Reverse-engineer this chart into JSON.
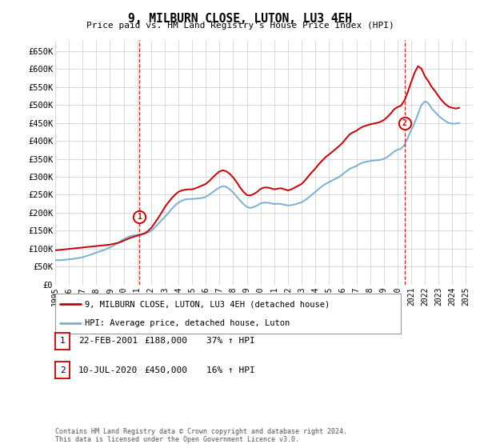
{
  "title": "9, MILBURN CLOSE, LUTON, LU3 4EH",
  "subtitle": "Price paid vs. HM Land Registry's House Price Index (HPI)",
  "xlim_start": 1995.0,
  "xlim_end": 2025.5,
  "ylim_min": 0,
  "ylim_max": 680000,
  "yticks": [
    0,
    50000,
    100000,
    150000,
    200000,
    250000,
    300000,
    350000,
    400000,
    450000,
    500000,
    550000,
    600000,
    650000
  ],
  "ytick_labels": [
    "£0",
    "£50K",
    "£100K",
    "£150K",
    "£200K",
    "£250K",
    "£300K",
    "£350K",
    "£400K",
    "£450K",
    "£500K",
    "£550K",
    "£600K",
    "£650K"
  ],
  "xticks": [
    1995,
    1996,
    1997,
    1998,
    1999,
    2000,
    2001,
    2002,
    2003,
    2004,
    2005,
    2006,
    2007,
    2008,
    2009,
    2010,
    2011,
    2012,
    2013,
    2014,
    2015,
    2016,
    2017,
    2018,
    2019,
    2020,
    2021,
    2022,
    2023,
    2024,
    2025
  ],
  "sale1_x": 2001.14,
  "sale1_y": 188000,
  "sale1_label": "1",
  "sale2_x": 2020.52,
  "sale2_y": 450000,
  "sale2_label": "2",
  "hpi_line_color": "#7bafd4",
  "price_line_color": "#cc0000",
  "sale_marker_color": "#cc0000",
  "vline_color": "#cc0000",
  "grid_color": "#cccccc",
  "background_color": "#ffffff",
  "legend_label1": "9, MILBURN CLOSE, LUTON, LU3 4EH (detached house)",
  "legend_label2": "HPI: Average price, detached house, Luton",
  "table_row1": [
    "1",
    "22-FEB-2001",
    "£188,000",
    "37% ↑ HPI"
  ],
  "table_row2": [
    "2",
    "10-JUL-2020",
    "£450,000",
    "16% ↑ HPI"
  ],
  "footer": "Contains HM Land Registry data © Crown copyright and database right 2024.\nThis data is licensed under the Open Government Licence v3.0.",
  "hpi_data_x": [
    1995.0,
    1995.25,
    1995.5,
    1995.75,
    1996.0,
    1996.25,
    1996.5,
    1996.75,
    1997.0,
    1997.25,
    1997.5,
    1997.75,
    1998.0,
    1998.25,
    1998.5,
    1998.75,
    1999.0,
    1999.25,
    1999.5,
    1999.75,
    2000.0,
    2000.25,
    2000.5,
    2000.75,
    2001.0,
    2001.25,
    2001.5,
    2001.75,
    2002.0,
    2002.25,
    2002.5,
    2002.75,
    2003.0,
    2003.25,
    2003.5,
    2003.75,
    2004.0,
    2004.25,
    2004.5,
    2004.75,
    2005.0,
    2005.25,
    2005.5,
    2005.75,
    2006.0,
    2006.25,
    2006.5,
    2006.75,
    2007.0,
    2007.25,
    2007.5,
    2007.75,
    2008.0,
    2008.25,
    2008.5,
    2008.75,
    2009.0,
    2009.25,
    2009.5,
    2009.75,
    2010.0,
    2010.25,
    2010.5,
    2010.75,
    2011.0,
    2011.25,
    2011.5,
    2011.75,
    2012.0,
    2012.25,
    2012.5,
    2012.75,
    2013.0,
    2013.25,
    2013.5,
    2013.75,
    2014.0,
    2014.25,
    2014.5,
    2014.75,
    2015.0,
    2015.25,
    2015.5,
    2015.75,
    2016.0,
    2016.25,
    2016.5,
    2016.75,
    2017.0,
    2017.25,
    2017.5,
    2017.75,
    2018.0,
    2018.25,
    2018.5,
    2018.75,
    2019.0,
    2019.25,
    2019.5,
    2019.75,
    2020.0,
    2020.25,
    2020.5,
    2020.75,
    2021.0,
    2021.25,
    2021.5,
    2021.75,
    2022.0,
    2022.25,
    2022.5,
    2022.75,
    2023.0,
    2023.25,
    2023.5,
    2023.75,
    2024.0,
    2024.25,
    2024.5
  ],
  "hpi_data_y": [
    68000,
    67500,
    68000,
    69000,
    70000,
    71000,
    72500,
    74000,
    76000,
    79000,
    82000,
    85000,
    89000,
    92000,
    95000,
    99000,
    103000,
    108000,
    114000,
    120000,
    126000,
    131000,
    135000,
    137000,
    138000,
    139000,
    141000,
    144000,
    149000,
    158000,
    168000,
    178000,
    188000,
    198000,
    210000,
    220000,
    228000,
    233000,
    237000,
    238000,
    238000,
    239000,
    240000,
    241000,
    244000,
    250000,
    257000,
    264000,
    270000,
    274000,
    272000,
    265000,
    256000,
    245000,
    234000,
    224000,
    216000,
    213000,
    216000,
    220000,
    226000,
    228000,
    228000,
    226000,
    224000,
    225000,
    224000,
    222000,
    220000,
    221000,
    223000,
    226000,
    229000,
    235000,
    242000,
    250000,
    258000,
    266000,
    274000,
    280000,
    285000,
    290000,
    295000,
    300000,
    307000,
    315000,
    322000,
    326000,
    330000,
    336000,
    340000,
    342000,
    344000,
    345000,
    346000,
    347000,
    350000,
    355000,
    362000,
    370000,
    375000,
    378000,
    388000,
    408000,
    430000,
    450000,
    475000,
    500000,
    510000,
    505000,
    490000,
    480000,
    470000,
    462000,
    455000,
    450000,
    448000,
    448000,
    450000
  ],
  "price_data_x": [
    1995.0,
    1995.25,
    1995.5,
    1995.75,
    1996.0,
    1996.25,
    1996.5,
    1996.75,
    1997.0,
    1997.25,
    1997.5,
    1997.75,
    1998.0,
    1998.25,
    1998.5,
    1998.75,
    1999.0,
    1999.25,
    1999.5,
    1999.75,
    2000.0,
    2000.25,
    2000.5,
    2000.75,
    2001.0,
    2001.25,
    2001.5,
    2001.75,
    2002.0,
    2002.25,
    2002.5,
    2002.75,
    2003.0,
    2003.25,
    2003.5,
    2003.75,
    2004.0,
    2004.25,
    2004.5,
    2004.75,
    2005.0,
    2005.25,
    2005.5,
    2005.75,
    2006.0,
    2006.25,
    2006.5,
    2006.75,
    2007.0,
    2007.25,
    2007.5,
    2007.75,
    2008.0,
    2008.25,
    2008.5,
    2008.75,
    2009.0,
    2009.25,
    2009.5,
    2009.75,
    2010.0,
    2010.25,
    2010.5,
    2010.75,
    2011.0,
    2011.25,
    2011.5,
    2011.75,
    2012.0,
    2012.25,
    2012.5,
    2012.75,
    2013.0,
    2013.25,
    2013.5,
    2013.75,
    2014.0,
    2014.25,
    2014.5,
    2014.75,
    2015.0,
    2015.25,
    2015.5,
    2015.75,
    2016.0,
    2016.25,
    2016.5,
    2016.75,
    2017.0,
    2017.25,
    2017.5,
    2017.75,
    2018.0,
    2018.25,
    2018.5,
    2018.75,
    2019.0,
    2019.25,
    2019.5,
    2019.75,
    2020.0,
    2020.25,
    2020.5,
    2020.75,
    2021.0,
    2021.25,
    2021.5,
    2021.75,
    2022.0,
    2022.25,
    2022.5,
    2022.75,
    2023.0,
    2023.25,
    2023.5,
    2023.75,
    2024.0,
    2024.25,
    2024.5
  ],
  "price_data_y": [
    95000,
    96000,
    97000,
    98000,
    99000,
    100000,
    101000,
    102000,
    103000,
    104000,
    105000,
    106000,
    107000,
    108000,
    109000,
    110000,
    111000,
    113000,
    115000,
    118000,
    122000,
    126000,
    130000,
    133000,
    136000,
    139000,
    142000,
    148000,
    157000,
    170000,
    184000,
    199000,
    215000,
    228000,
    240000,
    250000,
    258000,
    262000,
    264000,
    265000,
    265000,
    268000,
    272000,
    276000,
    280000,
    288000,
    298000,
    307000,
    315000,
    318000,
    315000,
    308000,
    298000,
    285000,
    270000,
    258000,
    249000,
    248000,
    252000,
    258000,
    266000,
    270000,
    270000,
    268000,
    265000,
    267000,
    268000,
    265000,
    262000,
    265000,
    270000,
    275000,
    280000,
    290000,
    302000,
    313000,
    323000,
    335000,
    345000,
    355000,
    362000,
    370000,
    378000,
    386000,
    395000,
    407000,
    418000,
    424000,
    428000,
    435000,
    440000,
    443000,
    446000,
    448000,
    450000,
    453000,
    458000,
    466000,
    476000,
    488000,
    494000,
    498000,
    512000,
    536000,
    564000,
    590000,
    608000,
    601000,
    580000,
    566000,
    550000,
    538000,
    524000,
    512000,
    502000,
    495000,
    492000,
    490000,
    492000
  ]
}
